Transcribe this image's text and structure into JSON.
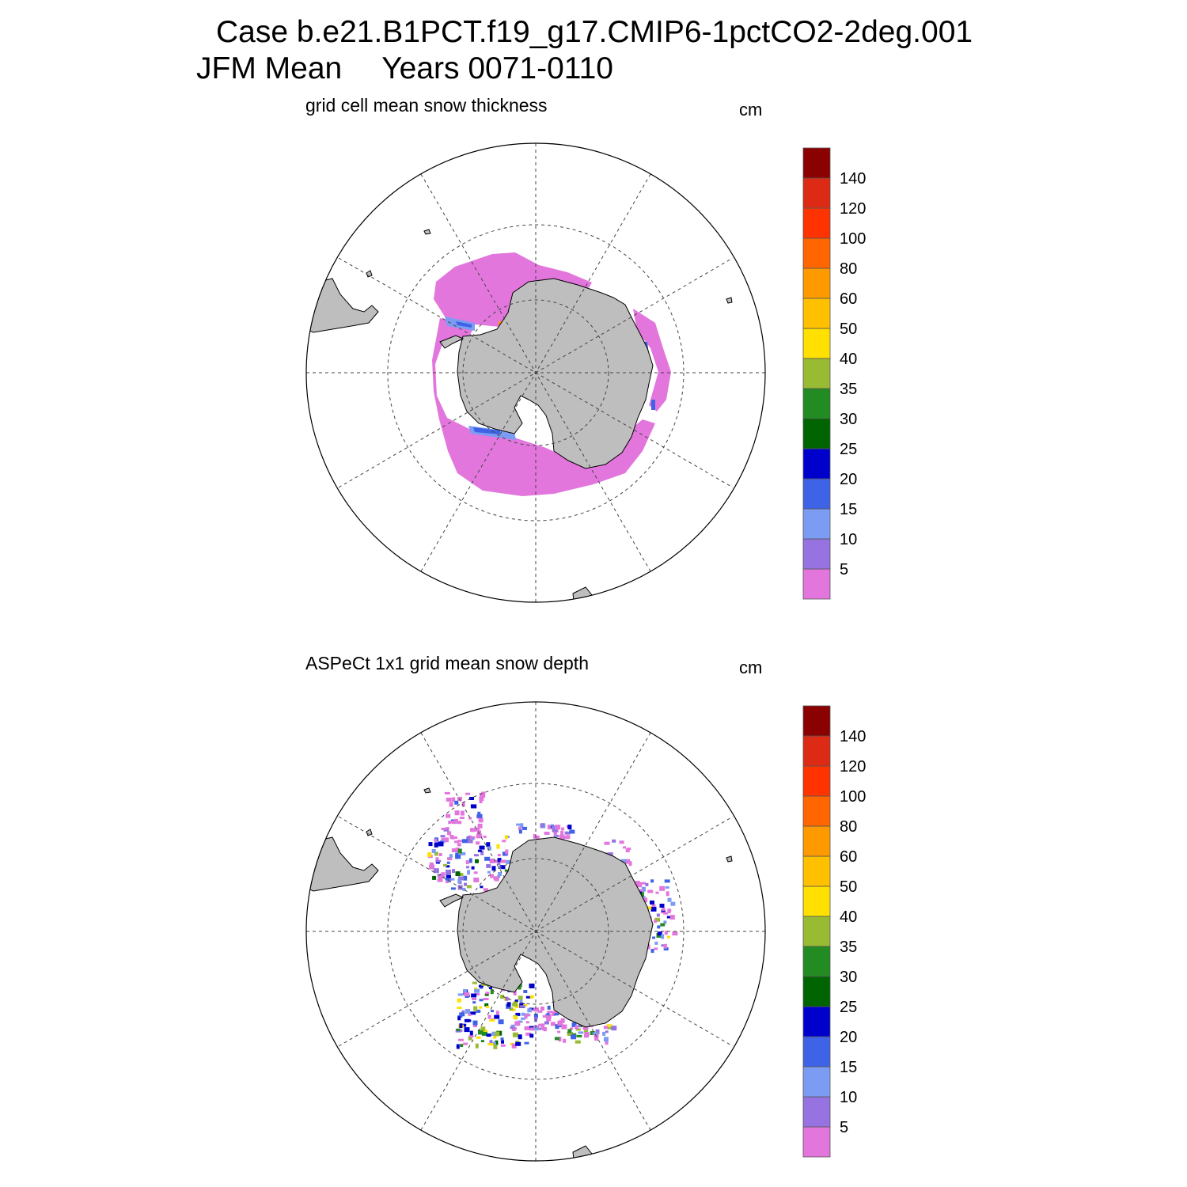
{
  "figure": {
    "case_title": "Case b.e21.B1PCT.f19_g17.CMIP6-1pctCO2-2deg.001",
    "season": "JFM Mean",
    "years": "Years 0071-0110"
  },
  "colorbar": {
    "labels": [
      "5",
      "10",
      "15",
      "20",
      "25",
      "30",
      "35",
      "40",
      "50",
      "60",
      "80",
      "100",
      "120",
      "140"
    ],
    "colors": [
      "#e276dd",
      "#9673e0",
      "#7b9cf2",
      "#3f63e6",
      "#0000cd",
      "#006400",
      "#228b22",
      "#99bb33",
      "#ffe000",
      "#ffc000",
      "#ff9900",
      "#ff6600",
      "#ff3300",
      "#dd2a14",
      "#8b0000"
    ]
  },
  "panels": [
    {
      "title": "grid cell mean snow thickness",
      "units": "cm"
    },
    {
      "title": "ASPeCt 1x1 grid mean snow depth",
      "units": "cm"
    }
  ],
  "map_style": {
    "land": "#bebebe",
    "ocean": "#ffffff",
    "grid": "#444444"
  }
}
